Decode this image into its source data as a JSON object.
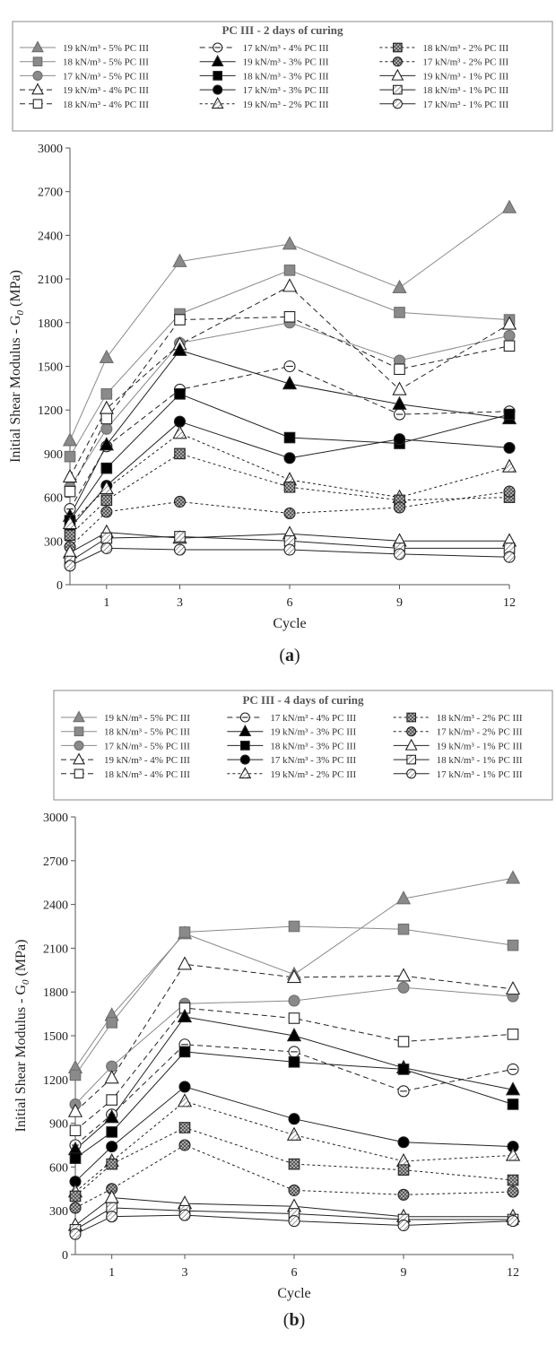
{
  "chart_data": [
    {
      "type": "line",
      "panel_label": "(a)",
      "title": "PC III -  2 days of curing",
      "xlabel": "Cycle",
      "ylabel": "Initial Shear Modulus - G",
      "ylabel_sub": "0",
      "ylabel_unit": " (MPa)",
      "x": [
        0,
        1,
        3,
        6,
        9,
        12
      ],
      "x_tick_labels": [
        "1",
        "3",
        "6",
        "9",
        "12"
      ],
      "xlim": [
        0,
        12
      ],
      "y_ticks": [
        0,
        300,
        600,
        900,
        1200,
        1500,
        1800,
        2100,
        2400,
        2700,
        3000
      ],
      "ylim": [
        0,
        3000
      ],
      "series": [
        {
          "name": "19 kN/m³ - 5% PC III",
          "marker": "triangle",
          "fill": "gray",
          "line": "solid-gray",
          "values": [
            990,
            1560,
            2220,
            2340,
            2040,
            2590
          ]
        },
        {
          "name": "18 kN/m³ - 5% PC III",
          "marker": "square",
          "fill": "gray",
          "line": "solid-gray",
          "values": [
            880,
            1310,
            1860,
            2160,
            1870,
            1820
          ]
        },
        {
          "name": "17 kN/m³ - 5% PC III",
          "marker": "circle",
          "fill": "gray",
          "line": "solid-gray",
          "values": [
            670,
            1070,
            1660,
            1800,
            1540,
            1710
          ]
        },
        {
          "name": "19 kN/m³ - 4% PC III",
          "marker": "triangle",
          "fill": "white",
          "line": "dashed",
          "values": [
            740,
            1210,
            1650,
            2050,
            1340,
            1790
          ]
        },
        {
          "name": "18 kN/m³ - 4% PC III",
          "marker": "square",
          "fill": "white",
          "line": "dashed",
          "values": [
            640,
            1140,
            1820,
            1840,
            1480,
            1640
          ]
        },
        {
          "name": "17 kN/m³ - 4% PC III",
          "marker": "circle",
          "fill": "white-dash",
          "line": "dashed",
          "values": [
            520,
            950,
            1340,
            1500,
            1170,
            1190
          ]
        },
        {
          "name": "19 kN/m³ - 3% PC III",
          "marker": "triangle",
          "fill": "black",
          "line": "solid",
          "values": [
            470,
            960,
            1610,
            1380,
            1240,
            1140
          ]
        },
        {
          "name": "18 kN/m³ - 3% PC III",
          "marker": "square",
          "fill": "black",
          "line": "solid",
          "values": [
            440,
            800,
            1310,
            1010,
            970,
            1170
          ]
        },
        {
          "name": "17 kN/m³ - 3% PC III",
          "marker": "circle",
          "fill": "black",
          "line": "solid",
          "values": [
            390,
            680,
            1120,
            870,
            1000,
            940
          ]
        },
        {
          "name": "19 kN/m³ - 2% PC III",
          "marker": "triangle",
          "fill": "hatch",
          "line": "dotted",
          "values": [
            420,
            660,
            1040,
            720,
            600,
            810
          ]
        },
        {
          "name": "18 kN/m³ - 2% PC III",
          "marker": "square",
          "fill": "cross",
          "line": "dotted",
          "values": [
            340,
            580,
            900,
            670,
            580,
            600
          ]
        },
        {
          "name": "17 kN/m³ - 2% PC III",
          "marker": "circle",
          "fill": "cross",
          "line": "dotted",
          "values": [
            260,
            500,
            570,
            490,
            530,
            640
          ]
        },
        {
          "name": "19 kN/m³ - 1% PC III",
          "marker": "triangle",
          "fill": "white",
          "line": "solid",
          "values": [
            220,
            360,
            320,
            350,
            300,
            300
          ]
        },
        {
          "name": "18 kN/m³ - 1% PC III",
          "marker": "square",
          "fill": "hatch",
          "line": "solid",
          "values": [
            160,
            320,
            330,
            300,
            250,
            250
          ]
        },
        {
          "name": "17 kN/m³ - 1% PC III",
          "marker": "circle",
          "fill": "hatch",
          "line": "solid",
          "values": [
            130,
            250,
            240,
            240,
            210,
            190
          ]
        }
      ]
    },
    {
      "type": "line",
      "panel_label": "(b)",
      "title": "PC III - 4 days of curing",
      "xlabel": "Cycle",
      "ylabel": "Initial Shear Modulus - G",
      "ylabel_sub": "0",
      "ylabel_unit": " (MPa)",
      "x": [
        0,
        1,
        3,
        6,
        9,
        12
      ],
      "x_tick_labels": [
        "1",
        "3",
        "6",
        "9",
        "12"
      ],
      "xlim": [
        0,
        12
      ],
      "y_ticks": [
        0,
        300,
        600,
        900,
        1200,
        1500,
        1800,
        2100,
        2400,
        2700,
        3000
      ],
      "ylim": [
        0,
        3000
      ],
      "series": [
        {
          "name": "19 kN/m³ - 5% PC III",
          "marker": "triangle",
          "fill": "gray",
          "line": "solid-gray",
          "values": [
            1280,
            1640,
            2200,
            1920,
            2440,
            2580
          ]
        },
        {
          "name": "18 kN/m³ - 5% PC III",
          "marker": "square",
          "fill": "gray",
          "line": "solid-gray",
          "values": [
            1230,
            1590,
            2210,
            2250,
            2230,
            2120
          ]
        },
        {
          "name": "17 kN/m³ - 5% PC III",
          "marker": "circle",
          "fill": "gray",
          "line": "solid-gray",
          "values": [
            1030,
            1290,
            1720,
            1740,
            1830,
            1770
          ]
        },
        {
          "name": "19 kN/m³ - 4% PC III",
          "marker": "triangle",
          "fill": "white",
          "line": "dashed",
          "values": [
            980,
            1210,
            1990,
            1900,
            1910,
            1820
          ]
        },
        {
          "name": "18 kN/m³ - 4% PC III",
          "marker": "square",
          "fill": "white",
          "line": "dashed",
          "values": [
            850,
            1060,
            1690,
            1620,
            1460,
            1510
          ]
        },
        {
          "name": "17 kN/m³ - 4% PC III",
          "marker": "circle",
          "fill": "white-dash",
          "line": "dashed",
          "values": [
            750,
            960,
            1440,
            1390,
            1120,
            1270
          ]
        },
        {
          "name": "19 kN/m³ - 3% PC III",
          "marker": "triangle",
          "fill": "black",
          "line": "solid",
          "values": [
            720,
            940,
            1630,
            1500,
            1280,
            1130
          ]
        },
        {
          "name": "18 kN/m³ - 3% PC III",
          "marker": "square",
          "fill": "black",
          "line": "solid",
          "values": [
            660,
            840,
            1390,
            1320,
            1270,
            1030
          ]
        },
        {
          "name": "17 kN/m³ - 3% PC III",
          "marker": "circle",
          "fill": "black",
          "line": "solid",
          "values": [
            500,
            740,
            1150,
            930,
            770,
            740
          ]
        },
        {
          "name": "19 kN/m³ - 2% PC III",
          "marker": "triangle",
          "fill": "hatch",
          "line": "dotted",
          "values": [
            430,
            640,
            1050,
            820,
            640,
            680
          ]
        },
        {
          "name": "18 kN/m³ - 2% PC III",
          "marker": "square",
          "fill": "cross",
          "line": "dotted",
          "values": [
            400,
            620,
            870,
            620,
            580,
            510
          ]
        },
        {
          "name": "17 kN/m³ - 2% PC III",
          "marker": "circle",
          "fill": "cross",
          "line": "dotted",
          "values": [
            320,
            450,
            750,
            440,
            410,
            430
          ]
        },
        {
          "name": "19 kN/m³ - 1% PC III",
          "marker": "triangle",
          "fill": "white",
          "line": "solid",
          "values": [
            200,
            390,
            350,
            330,
            260,
            260
          ]
        },
        {
          "name": "18 kN/m³ - 1% PC III",
          "marker": "square",
          "fill": "hatch",
          "line": "solid",
          "values": [
            170,
            320,
            300,
            280,
            240,
            240
          ]
        },
        {
          "name": "17 kN/m³ - 1% PC III",
          "marker": "circle",
          "fill": "hatch",
          "line": "solid",
          "values": [
            140,
            260,
            270,
            230,
            200,
            230
          ]
        }
      ]
    }
  ]
}
